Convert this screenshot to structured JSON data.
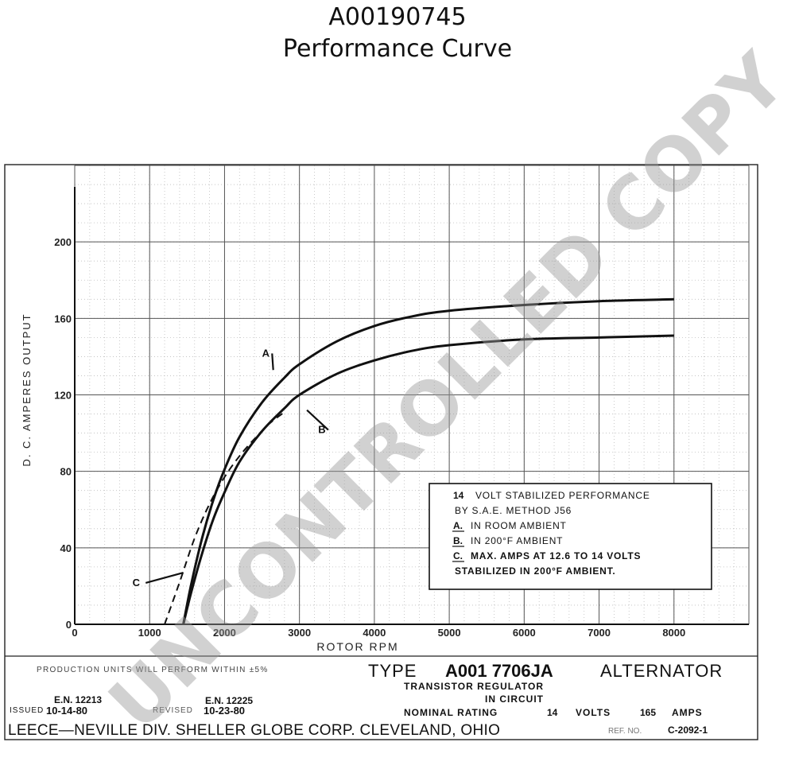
{
  "header": {
    "part_number": "A00190745",
    "subtitle": "Performance Curve"
  },
  "watermark": "UNCONTROLLED COPY",
  "chart_data": {
    "type": "line",
    "xlabel": "ROTOR RPM",
    "ylabel": "D. C. AMPERES OUTPUT",
    "xlim": [
      0,
      9000
    ],
    "ylim": [
      0,
      240
    ],
    "x_ticks": [
      0,
      1000,
      2000,
      3000,
      4000,
      5000,
      6000,
      7000,
      8000
    ],
    "x_tick_labels": [
      "0",
      "1000",
      "2000",
      "3000",
      "4000",
      "5000",
      "6000",
      "7000",
      "8000"
    ],
    "y_ticks": [
      0,
      40,
      80,
      120,
      160,
      200
    ],
    "y_tick_labels": [
      "0",
      "40",
      "80",
      "120",
      "160",
      "200"
    ],
    "grid": true,
    "series": [
      {
        "name": "A",
        "style": "solid",
        "x": [
          1450,
          1550,
          1700,
          1850,
          2000,
          2200,
          2500,
          2800,
          3000,
          3500,
          4000,
          4500,
          5000,
          6000,
          7000,
          8000
        ],
        "y": [
          0,
          20,
          45,
          65,
          81,
          98,
          116,
          129,
          136,
          148,
          156,
          161,
          164,
          167,
          169,
          170
        ]
      },
      {
        "name": "B",
        "style": "solid",
        "x": [
          1450,
          1550,
          1700,
          1850,
          2000,
          2200,
          2500,
          2800,
          3000,
          3500,
          4000,
          4500,
          5000,
          6000,
          7000,
          8000
        ],
        "y": [
          0,
          16,
          37,
          55,
          69,
          85,
          101,
          113,
          120,
          131,
          138,
          143,
          146,
          149,
          150,
          151
        ]
      },
      {
        "name": "C",
        "style": "dashed",
        "x": [
          1200,
          1400,
          1600,
          1800,
          2000,
          2200,
          2400,
          2600,
          2800
        ],
        "y": [
          0,
          22,
          45,
          63,
          77,
          88,
          97,
          105,
          111
        ]
      }
    ],
    "curve_labels": [
      {
        "text": "A",
        "x": 2550,
        "y": 140
      },
      {
        "text": "B",
        "x": 3300,
        "y": 100
      },
      {
        "text": "C",
        "x": 820,
        "y": 20
      }
    ],
    "legend": {
      "placement": "lower-right",
      "lines": [
        {
          "prefix": "14",
          "text": "VOLT STABILIZED PERFORMANCE"
        },
        {
          "prefix": "",
          "text": "BY S.A.E. METHOD  J56"
        },
        {
          "prefix": "A.",
          "text": "IN ROOM AMBIENT"
        },
        {
          "prefix": "B.",
          "text": "IN 200°F AMBIENT"
        },
        {
          "prefix": "C.",
          "text": "MAX. AMPS AT 12.6  TO 14 VOLTS"
        },
        {
          "prefix": "",
          "text": "STABILIZED IN 200°F AMBIENT."
        }
      ]
    }
  },
  "footer": {
    "production_note": "PRODUCTION UNITS WILL PERFORM WITHIN ±5%",
    "type_label": "TYPE",
    "model": "A001 7706JA",
    "alternator": "ALTERNATOR",
    "regulator_1": "TRANSISTOR REGULATOR",
    "regulator_2": "IN CIRCUIT",
    "en_issued": "E.N. 12213",
    "issued_label": "ISSUED",
    "issued_date": "10-14-80",
    "en_revised": "E.N. 12225",
    "revised_label": "REVISED",
    "revised_date": "10-23-80",
    "nominal_label": "NOMINAL RATING",
    "volts": "14",
    "volts_label": "VOLTS",
    "amps": "165",
    "amps_label": "AMPS",
    "company": "LEECE—NEVILLE DIV. SHELLER GLOBE CORP. CLEVELAND, OHIO",
    "ref_label": "REF. NO.",
    "ref_number": "C-2092-1"
  }
}
